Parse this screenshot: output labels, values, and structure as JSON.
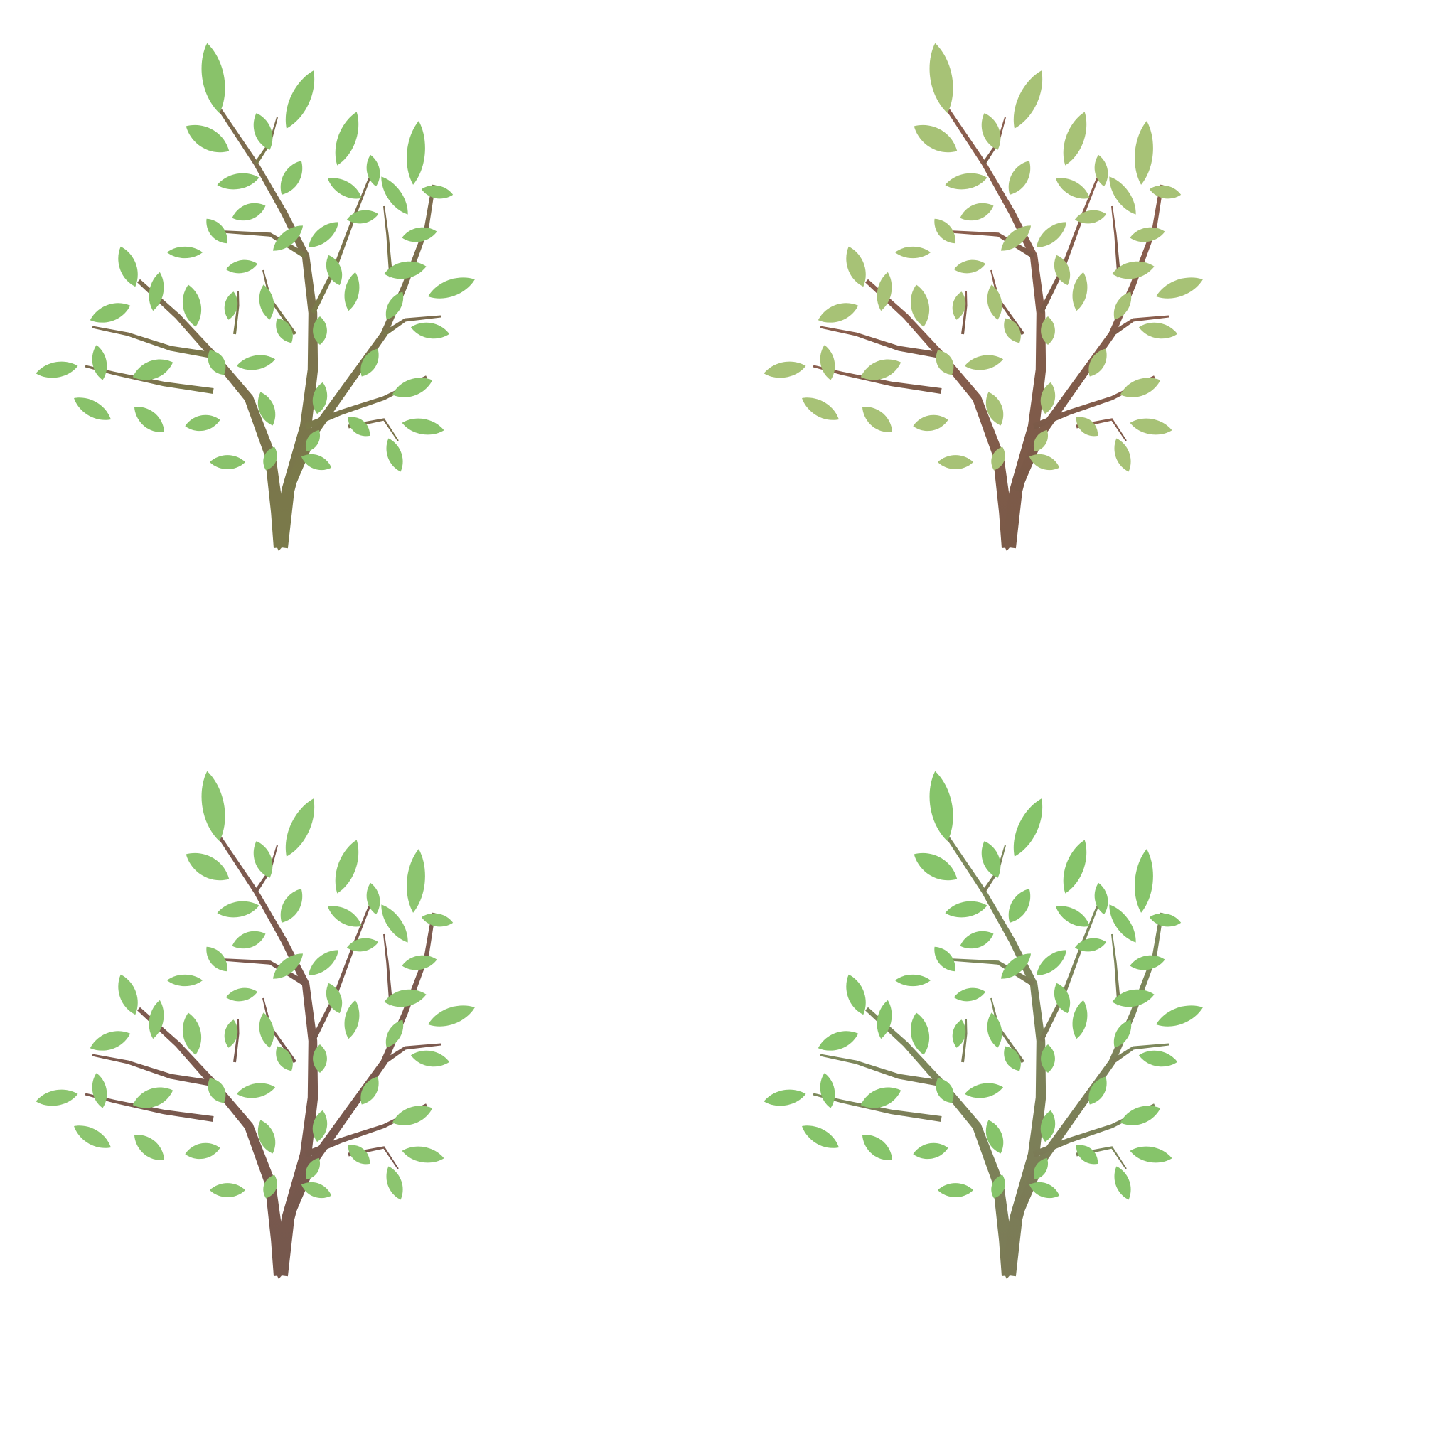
{
  "panels": [
    {
      "id": "top-left",
      "branch_top": "#7c6a4e",
      "branch_bottom": "#7a7a4a",
      "leaf": "#89c26a"
    },
    {
      "id": "top-right",
      "branch_top": "#8b5e4e",
      "branch_bottom": "#7a5a48",
      "leaf": "#a7c276"
    },
    {
      "id": "bottom-left",
      "branch_top": "#7d5a4f",
      "branch_bottom": "#76584d",
      "leaf": "#8cc56f"
    },
    {
      "id": "bottom-right",
      "branch_top": "#7d8a5c",
      "branch_bottom": "#7b7a56",
      "leaf": "#86c46a"
    }
  ]
}
